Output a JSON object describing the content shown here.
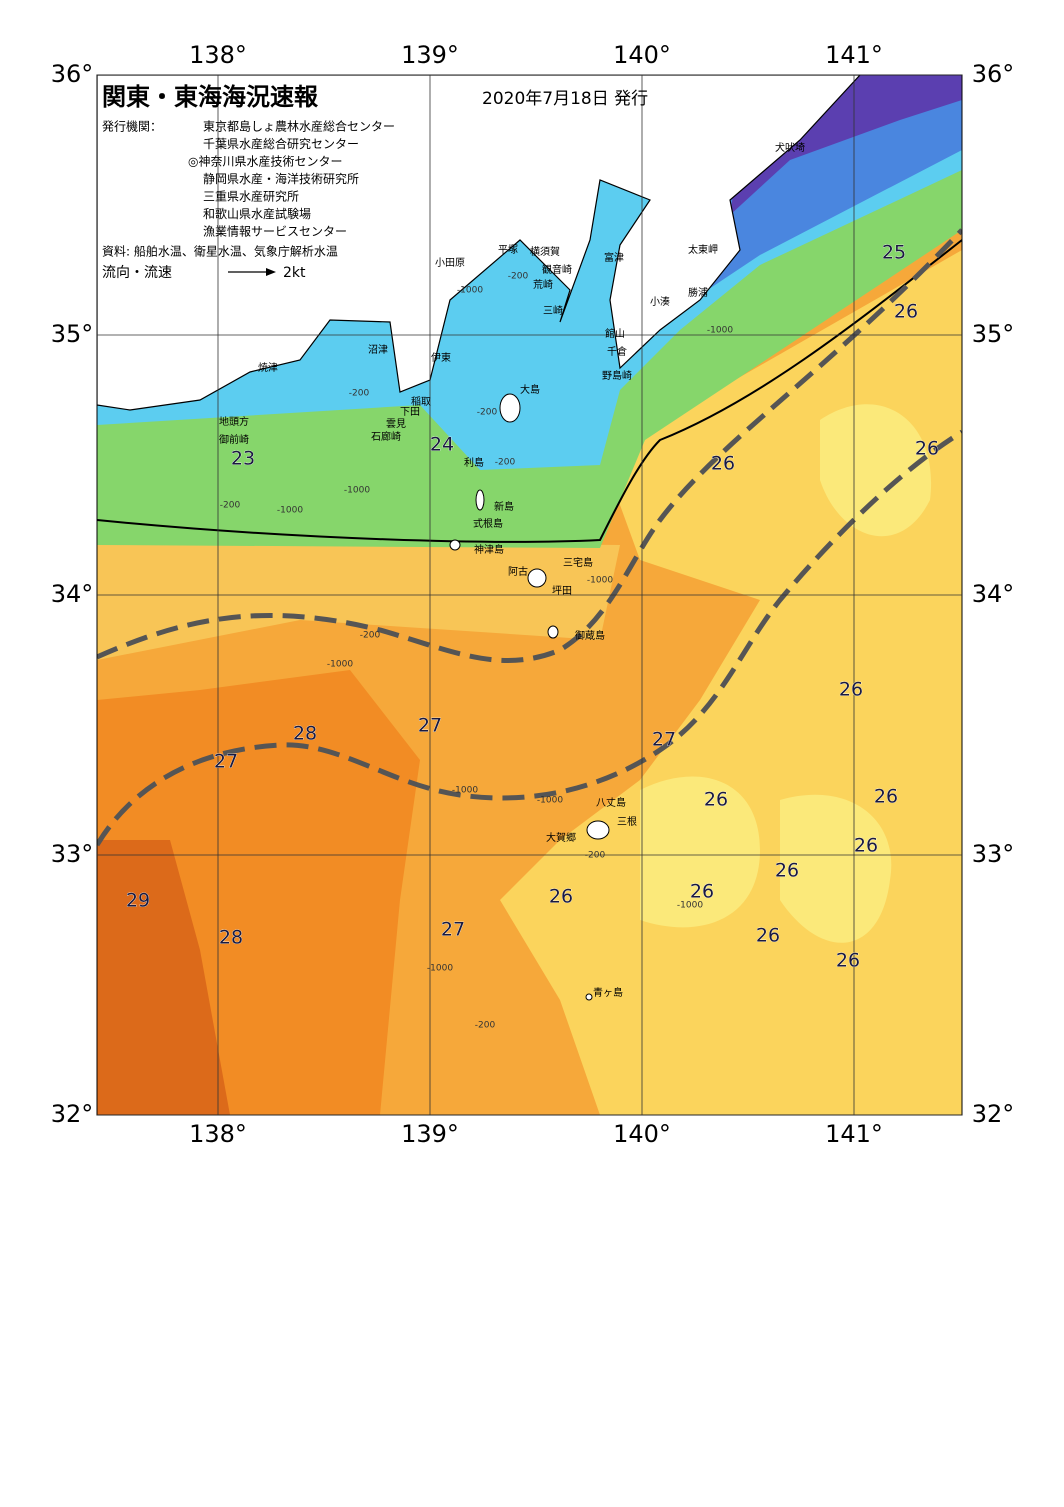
{
  "header": {
    "title": "関東・東海海況速報",
    "date": "2020年7月18日 発行",
    "issuer_label": "発行機関：",
    "issuers": [
      "東京都島しょ農林水産総合センター",
      "千葉県水産総合研究センター",
      "◎神奈川県水産技術センター",
      "静岡県水産・海洋技術研究所",
      "三重県水産研究所",
      "和歌山県水産試験場",
      "漁業情報サービスセンター"
    ],
    "source": "資料: 船舶水温、衛星水温、気象庁解析水温",
    "legend_label": "流向・流速",
    "legend_speed": "2kt"
  },
  "map": {
    "lon_ticks": [
      {
        "value": 138,
        "label": "138°"
      },
      {
        "value": 139,
        "label": "139°"
      },
      {
        "value": 140,
        "label": "140°"
      },
      {
        "value": 141,
        "label": "141°"
      }
    ],
    "lat_ticks": [
      {
        "value": 36,
        "label": "36°"
      },
      {
        "value": 35,
        "label": "35°"
      },
      {
        "value": 34,
        "label": "34°"
      },
      {
        "value": 33,
        "label": "33°"
      },
      {
        "value": 32,
        "label": "32°"
      }
    ],
    "places": [
      "犬吠埼",
      "太東岬",
      "勝浦",
      "小湊",
      "富津",
      "横須賀",
      "平塚",
      "観音崎",
      "荒崎",
      "三崎",
      "館山",
      "千倉",
      "野島崎",
      "小田原",
      "沼津",
      "伊東",
      "焼津",
      "稲取",
      "下田",
      "雲見",
      "石廊崎",
      "地頭方",
      "御前崎",
      "大島",
      "利島",
      "新島",
      "式根島",
      "神津島",
      "三宅島",
      "阿古",
      "坪田",
      "御蔵島",
      "八丈島",
      "三根",
      "大賀郷",
      "青ヶ島"
    ],
    "temperatures": [
      25,
      26,
      26,
      26,
      23,
      24,
      26,
      28,
      27,
      27,
      27,
      26,
      26,
      26,
      26,
      26,
      26,
      26,
      26,
      29,
      28,
      27
    ],
    "depths": [
      -200,
      -1000,
      -200,
      -200,
      -1000,
      -200,
      -200,
      -200,
      -1000,
      -1000,
      -200,
      -1000,
      -1000,
      -1000,
      -1000,
      -200,
      -1000,
      -1000
    ]
  }
}
